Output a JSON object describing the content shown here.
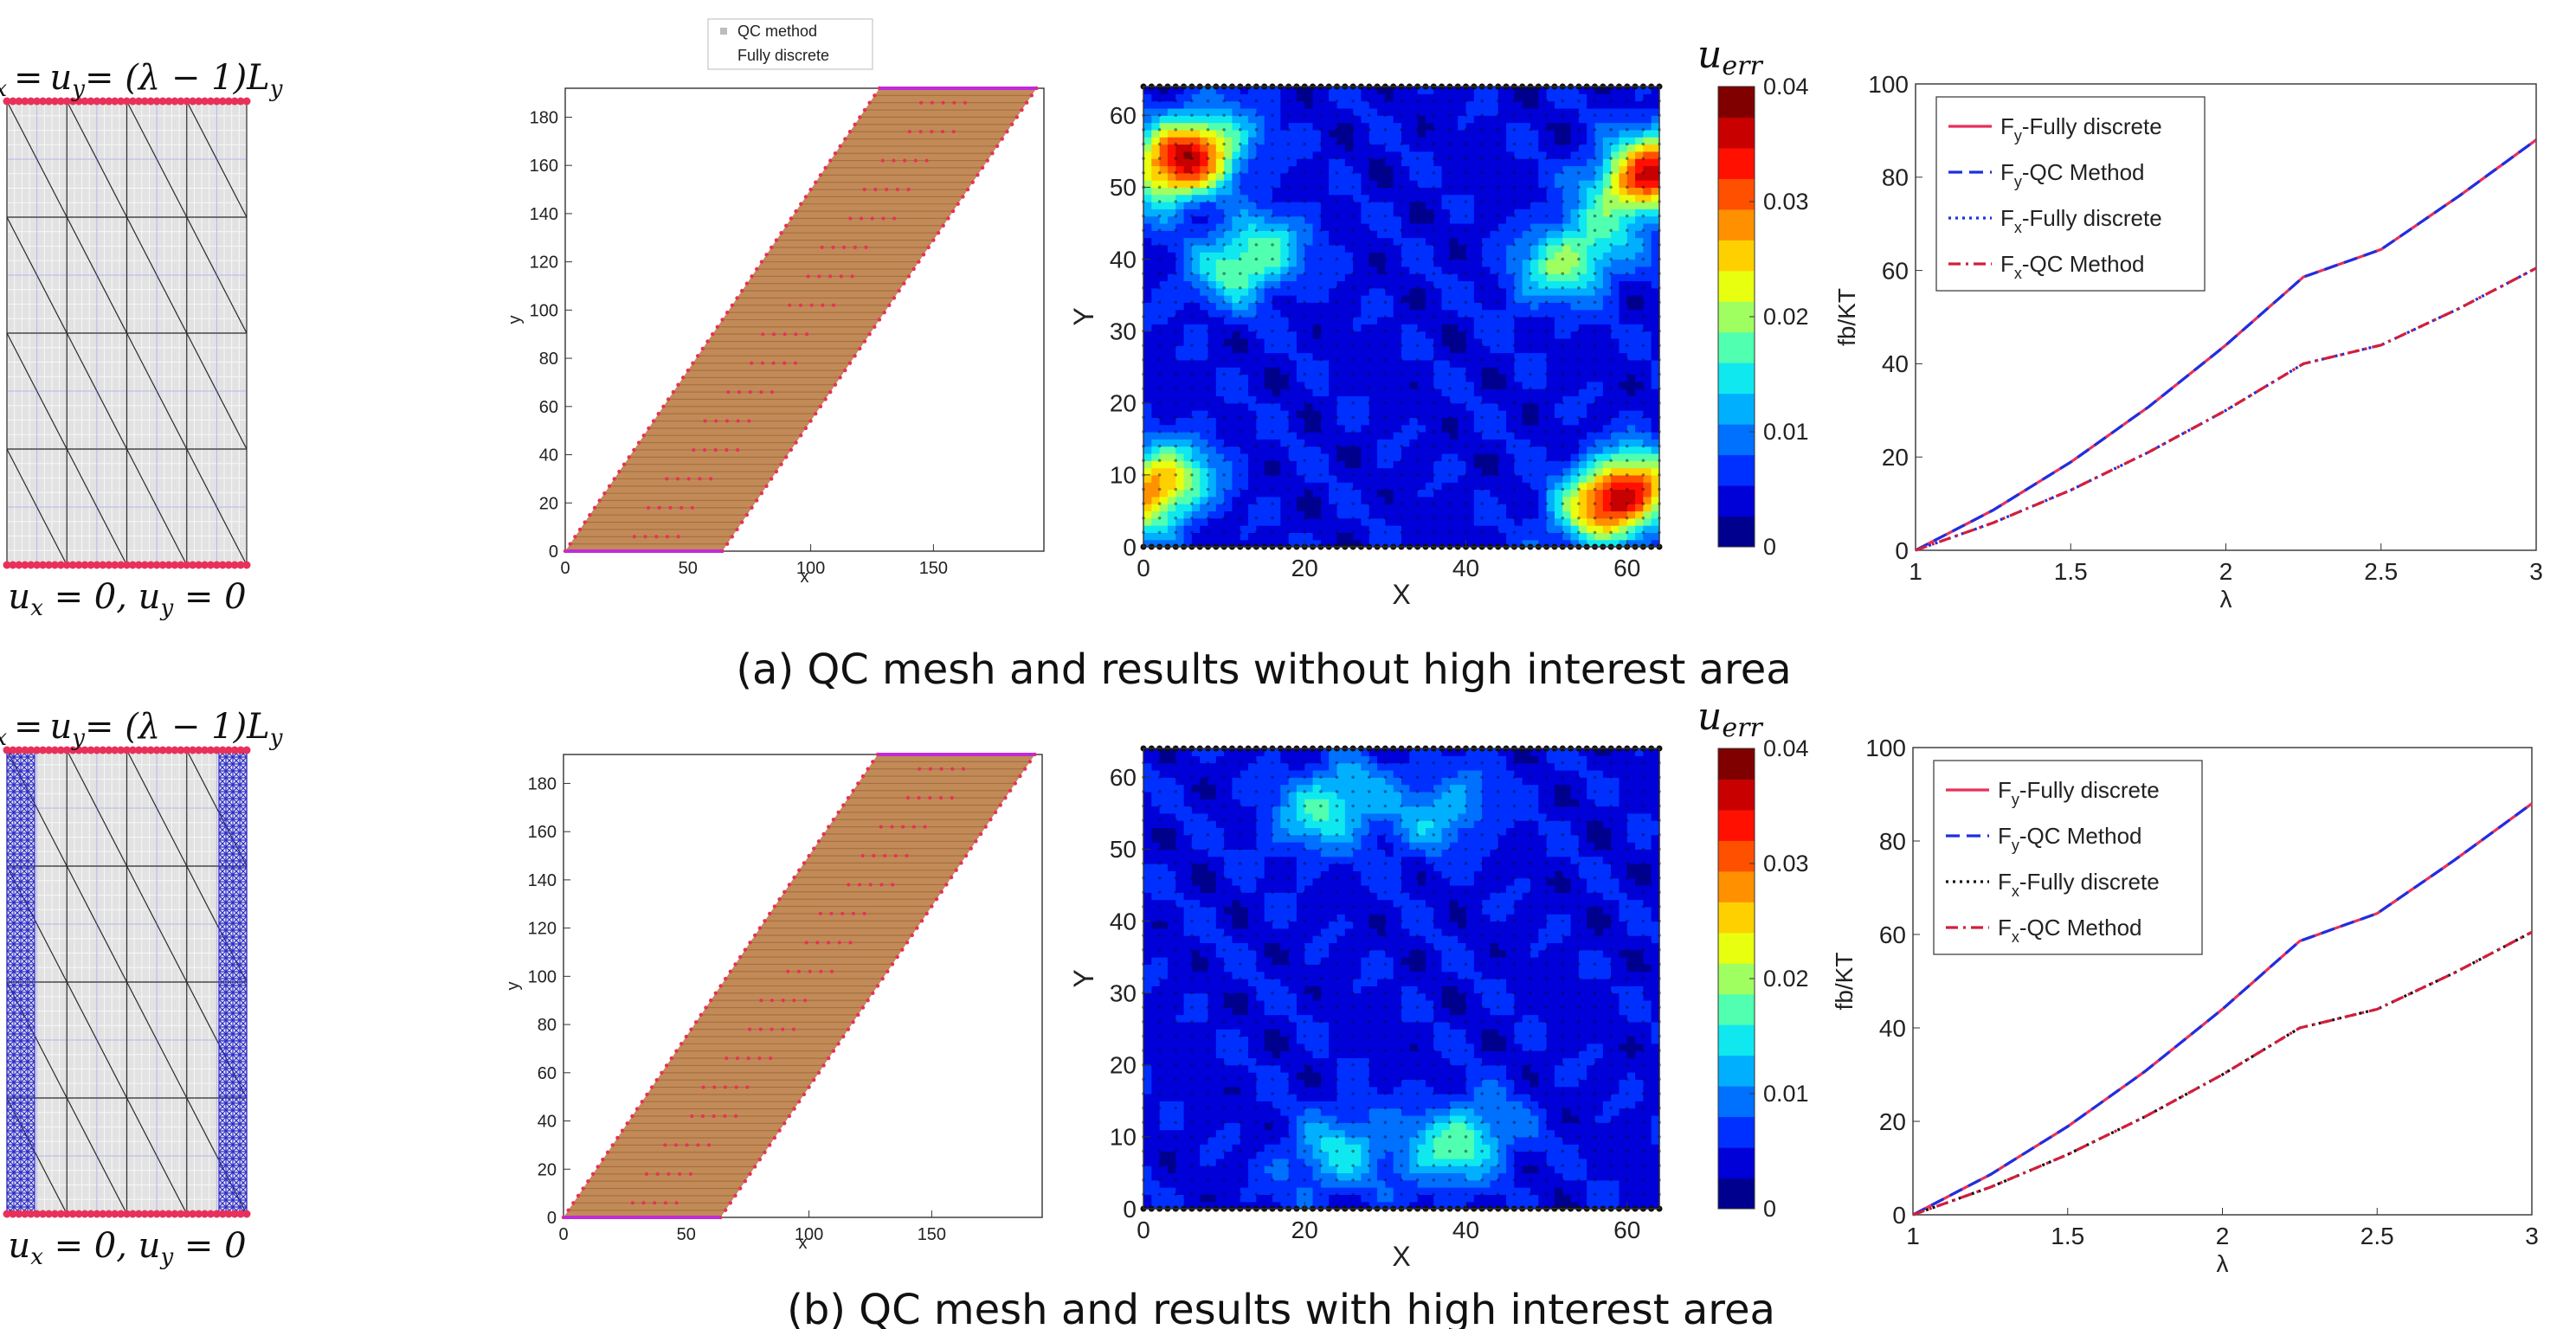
{
  "captions": {
    "a": "(a) QC mesh and results without high interest area",
    "b": "(b) QC mesh and results with high interest area"
  },
  "mesh": {
    "top_bc_lhs": "u",
    "top_bc_sub_x": "x",
    "top_bc_eq": "=",
    "top_bc_u2": "u",
    "top_bc_sub_y": "y",
    "top_bc_rhs": "= (λ − 1)L",
    "top_bc_sub_Ly": "y",
    "bottom_bc_lhs": "u",
    "bottom_bc_sub_x": "x",
    "bottom_bc_mid": " = 0, u",
    "bottom_bc_sub_y": "y",
    "bottom_bc_end": " = 0",
    "node_color": "#e8305a",
    "fine_mesh_color": "#2c2ccc"
  },
  "colorbar": {
    "symbol": "u",
    "subscript": "err",
    "colors": [
      "#00008f",
      "#0000d8",
      "#0030ff",
      "#0070ff",
      "#00b0ff",
      "#10e8f0",
      "#50ffb0",
      "#a0ff60",
      "#e8ff10",
      "#ffd000",
      "#ff9000",
      "#ff5000",
      "#ff1000",
      "#c80000",
      "#800000"
    ]
  },
  "chart_data": [
    {
      "type": "scatter",
      "panel": "a-deformed",
      "title": "",
      "xlabel": "x",
      "ylabel": "y",
      "xlim": [
        0,
        195
      ],
      "ylim": [
        0,
        192
      ],
      "xticks": [
        0,
        50,
        100,
        150
      ],
      "yticks": [
        0,
        20,
        40,
        60,
        80,
        100,
        120,
        140,
        160,
        180
      ],
      "legend": [
        "QC method",
        "Fully discrete"
      ],
      "legend_position": "top",
      "shape": {
        "bottom_x": [
          0,
          64
        ],
        "top_x": [
          128,
          192
        ],
        "height": 192
      },
      "series_colors": [
        "#c28a57",
        "#e8305a"
      ]
    },
    {
      "type": "heatmap",
      "panel": "a-error",
      "xlabel": "X",
      "ylabel": "Y",
      "xlim": [
        0,
        64
      ],
      "ylim": [
        0,
        64
      ],
      "xticks": [
        0,
        20,
        40,
        60
      ],
      "yticks": [
        0,
        10,
        20,
        30,
        40,
        50,
        60
      ],
      "colorbar_label": "u_err",
      "colorbar_range": [
        0,
        0.04
      ],
      "colorbar_ticks": [
        0,
        0.01,
        0.02,
        0.03,
        0.04
      ],
      "hotspots": [
        {
          "x": 5,
          "y": 54,
          "value": 0.032
        },
        {
          "x": 59,
          "y": 7,
          "value": 0.033
        },
        {
          "x": 1,
          "y": 8,
          "value": 0.025
        },
        {
          "x": 63,
          "y": 52,
          "value": 0.03
        },
        {
          "x": 13,
          "y": 40,
          "value": 0.015
        },
        {
          "x": 53,
          "y": 40,
          "value": 0.015
        }
      ]
    },
    {
      "type": "line",
      "panel": "a-force",
      "xlabel": "λ",
      "ylabel": "fb/KT",
      "xlim": [
        1,
        3
      ],
      "ylim": [
        0,
        100
      ],
      "xticks": [
        1,
        1.5,
        2,
        2.5,
        3
      ],
      "yticks": [
        0,
        20,
        40,
        60,
        80,
        100
      ],
      "legend_position": "top-left",
      "x": [
        1,
        1.25,
        1.5,
        1.75,
        2,
        2.25,
        2.5,
        2.75,
        3
      ],
      "series": [
        {
          "name": "F",
          "subscript": "y",
          "suffix": "-Fully discrete",
          "color": "#e8305a",
          "dash": "solid",
          "values": [
            0,
            8.6,
            18.9,
            30.7,
            44.0,
            58.6,
            64.5,
            75.9,
            88.0
          ]
        },
        {
          "name": "F",
          "subscript": "y",
          "suffix": "-QC Method",
          "color": "#1f2fe0",
          "dash": "dashed",
          "values": [
            0,
            8.6,
            18.9,
            30.7,
            44.0,
            58.6,
            64.5,
            75.9,
            88.0
          ]
        },
        {
          "name": "F",
          "subscript": "x",
          "suffix": "-Fully discrete",
          "color": "#1f2fe0",
          "dash": "dotted",
          "values": [
            0,
            5.9,
            12.9,
            21.0,
            30.0,
            40.0,
            44.0,
            51.8,
            60.5
          ]
        },
        {
          "name": "F",
          "subscript": "x",
          "suffix": "-QC Method",
          "color": "#d21f3c",
          "dash": "dashdot",
          "values": [
            0,
            5.9,
            12.9,
            21.0,
            30.0,
            40.0,
            44.0,
            51.8,
            60.5
          ]
        }
      ]
    },
    {
      "type": "scatter",
      "panel": "b-deformed",
      "title": "",
      "xlabel": "x",
      "ylabel": "y",
      "xlim": [
        0,
        195
      ],
      "ylim": [
        0,
        192
      ],
      "xticks": [
        0,
        50,
        100,
        150
      ],
      "yticks": [
        0,
        20,
        40,
        60,
        80,
        100,
        120,
        140,
        160,
        180
      ],
      "shape": {
        "bottom_x": [
          0,
          64
        ],
        "top_x": [
          128,
          192
        ],
        "height": 192
      },
      "series_colors": [
        "#c28a57",
        "#e8305a"
      ]
    },
    {
      "type": "heatmap",
      "panel": "b-error",
      "xlabel": "X",
      "ylabel": "Y",
      "xlim": [
        0,
        64
      ],
      "ylim": [
        0,
        64
      ],
      "xticks": [
        0,
        20,
        40,
        60
      ],
      "yticks": [
        0,
        10,
        20,
        30,
        40,
        50,
        60
      ],
      "colorbar_label": "u_err",
      "colorbar_range": [
        0,
        0.04
      ],
      "colorbar_ticks": [
        0,
        0.01,
        0.02,
        0.03,
        0.04
      ],
      "hotspots": [
        {
          "x": 23,
          "y": 56,
          "value": 0.012
        },
        {
          "x": 39,
          "y": 9,
          "value": 0.013
        },
        {
          "x": 24,
          "y": 8,
          "value": 0.009
        },
        {
          "x": 37,
          "y": 55,
          "value": 0.008
        }
      ]
    },
    {
      "type": "line",
      "panel": "b-force",
      "xlabel": "λ",
      "ylabel": "fb/KT",
      "xlim": [
        1,
        3
      ],
      "ylim": [
        0,
        100
      ],
      "xticks": [
        1,
        1.5,
        2,
        2.5,
        3
      ],
      "yticks": [
        0,
        20,
        40,
        60,
        80,
        100
      ],
      "legend_position": "top-left",
      "x": [
        1,
        1.25,
        1.5,
        1.75,
        2,
        2.25,
        2.5,
        2.75,
        3
      ],
      "series": [
        {
          "name": "F",
          "subscript": "y",
          "suffix": "-Fully discrete",
          "color": "#e8305a",
          "dash": "solid",
          "values": [
            0,
            8.6,
            18.9,
            30.7,
            44.0,
            58.6,
            64.5,
            75.9,
            88.0
          ]
        },
        {
          "name": "F",
          "subscript": "y",
          "suffix": "-QC Method",
          "color": "#1f2fe0",
          "dash": "dashed",
          "values": [
            0,
            8.6,
            18.9,
            30.7,
            44.0,
            58.6,
            64.5,
            75.9,
            88.0
          ]
        },
        {
          "name": "F",
          "subscript": "x",
          "suffix": "-Fully discrete",
          "color": "#111111",
          "dash": "dotted",
          "values": [
            0,
            5.9,
            12.9,
            21.0,
            30.0,
            40.0,
            44.0,
            51.8,
            60.5
          ]
        },
        {
          "name": "F",
          "subscript": "x",
          "suffix": "-QC Method",
          "color": "#d21f3c",
          "dash": "dashdot",
          "values": [
            0,
            5.9,
            12.9,
            21.0,
            30.0,
            40.0,
            44.0,
            51.8,
            60.5
          ]
        }
      ]
    }
  ]
}
